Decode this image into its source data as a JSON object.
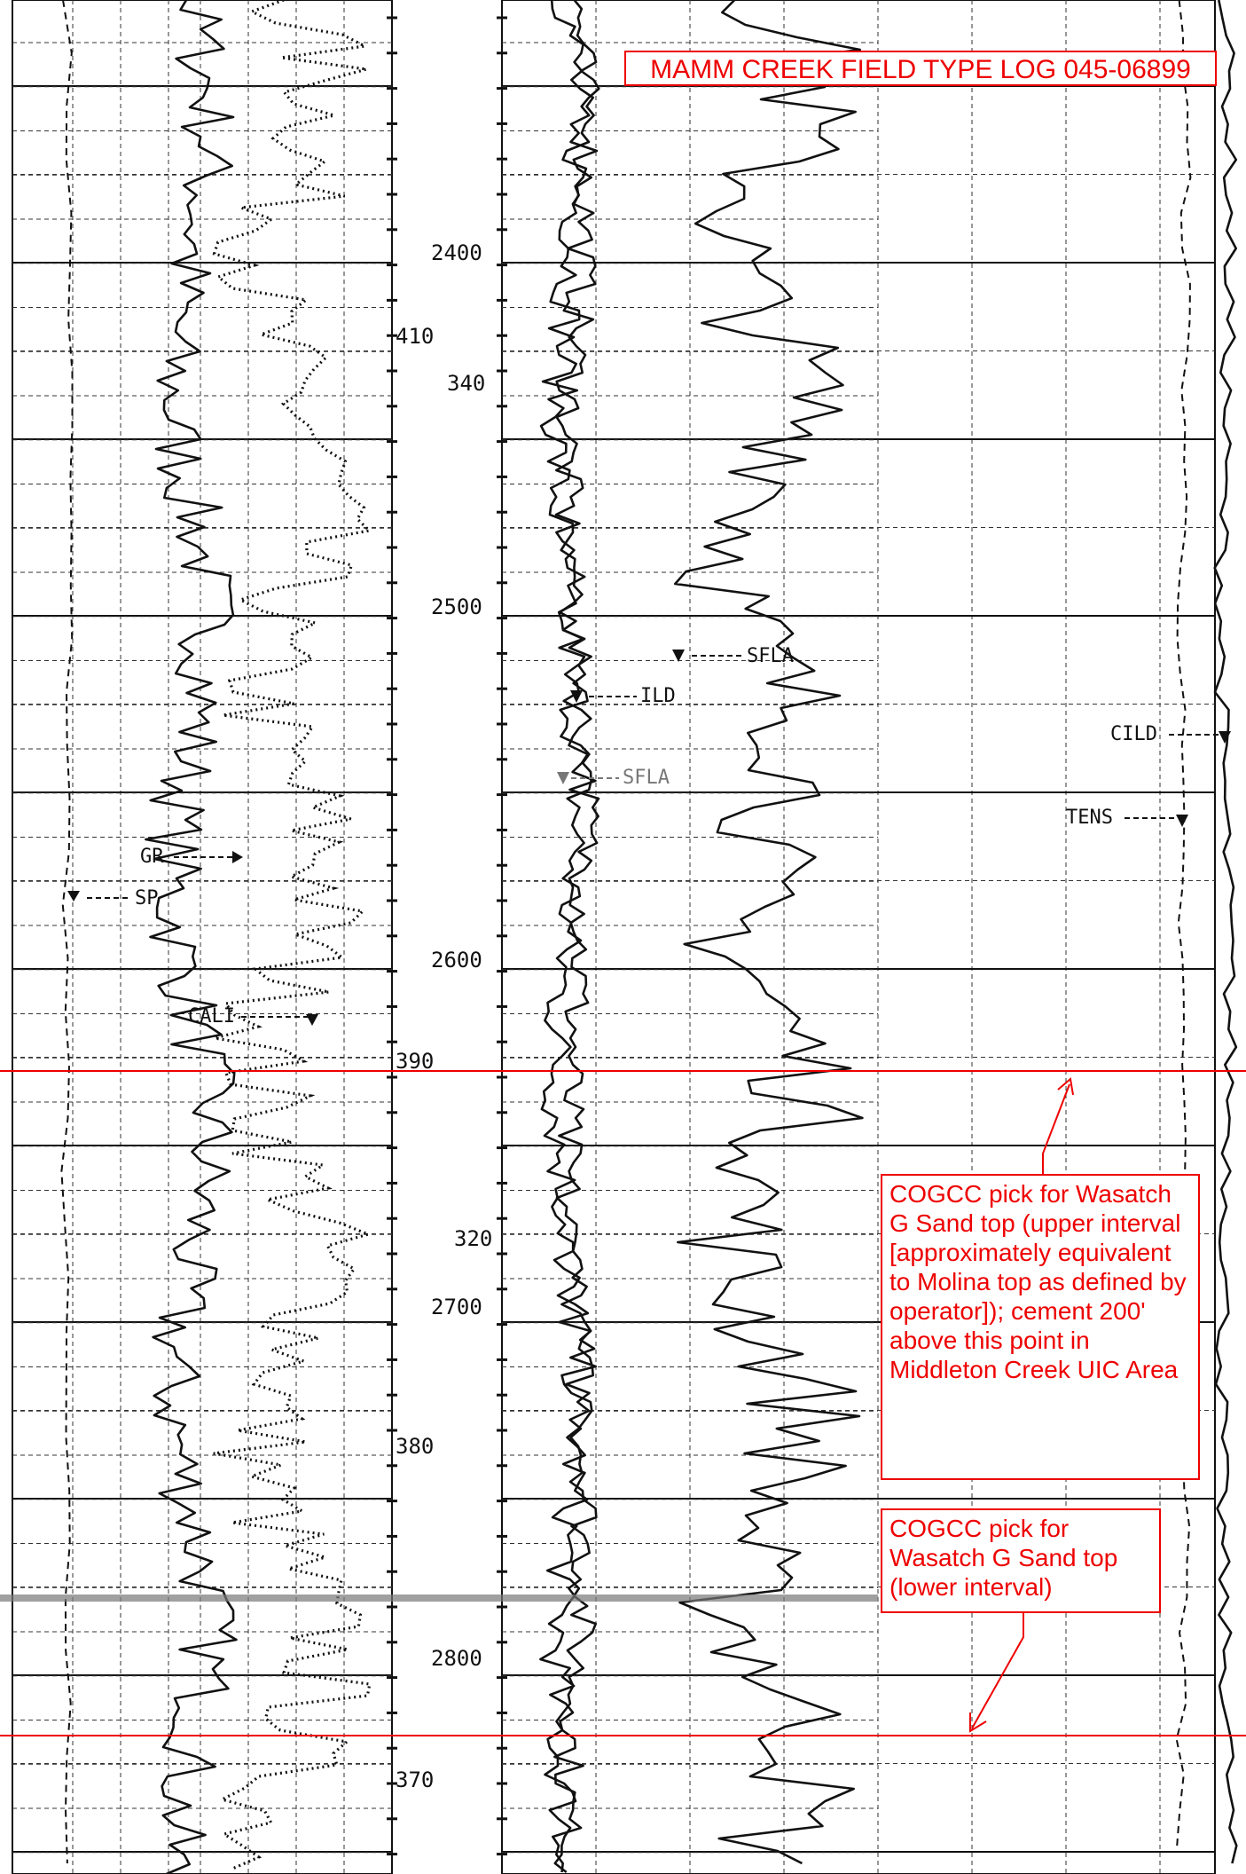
{
  "title": "MAMM CREEK FIELD TYPE LOG 045-06899",
  "depth_scale": {
    "labels": [
      "2400",
      "2500",
      "2600",
      "2700",
      "2800"
    ],
    "secondary_labels": [
      "410",
      "340",
      "390",
      "320",
      "380",
      "370"
    ]
  },
  "curves": {
    "left_track": [
      "GR",
      "SP",
      "CALI"
    ],
    "right_track": [
      "ILD",
      "SFLA",
      "SFLA"
    ],
    "far_right_track": [
      "CILD",
      "TENS"
    ]
  },
  "picks": {
    "upper_note": "COGCC pick for Wasatch G Sand top (upper interval [approximately equivalent to Molina top as defined by operator]); cement 200' above this point in Middleton Creek UIC Area",
    "lower_note": "COGCC pick for Wasatch G Sand top (lower interval)"
  },
  "colors": {
    "annotation": "#ee0000",
    "ink": "#111111",
    "background": "#ffffff"
  }
}
